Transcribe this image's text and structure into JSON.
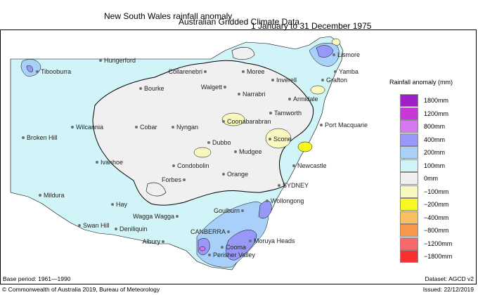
{
  "title": {
    "line1_left": "New South Wales rainfall anomaly",
    "line1_right": "1 January to 31 December 1975",
    "line2": "Australian Gridded Climate Data"
  },
  "footer": {
    "base_period": "Base period: 1961—1990",
    "dataset": "Dataset: AGCD v2",
    "copyright": "© Commonwealth of Australia 2019, Bureau of Meteorology",
    "issued": "Issued: 22/12/2019"
  },
  "legend": {
    "title": "Rainfall anomaly (mm)",
    "items": [
      {
        "label": "1800mm",
        "color": "#a020c8"
      },
      {
        "label": "1200mm",
        "color": "#c838d8"
      },
      {
        "label": "800mm",
        "color": "#d878f0"
      },
      {
        "label": "400mm",
        "color": "#9898f8"
      },
      {
        "label": "200mm",
        "color": "#a8d0f8"
      },
      {
        "label": "100mm",
        "color": "#d0f4f8"
      },
      {
        "label": "0mm",
        "color": "#f0f0f0"
      },
      {
        "label": "−100mm",
        "color": "#f8f8c0"
      },
      {
        "label": "−200mm",
        "color": "#f8f820"
      },
      {
        "label": "−400mm",
        "color": "#f8c060"
      },
      {
        "label": "−800mm",
        "color": "#f89848"
      },
      {
        "label": "−1200mm",
        "color": "#f86868"
      },
      {
        "label": "−1800mm",
        "color": "#f83030"
      }
    ]
  },
  "towns": [
    {
      "name": "Hungerford"
    },
    {
      "name": "Tibooburra"
    },
    {
      "name": "Collarenebri"
    },
    {
      "name": "Moree"
    },
    {
      "name": "Lismore"
    },
    {
      "name": "Yamba"
    },
    {
      "name": "Grafton"
    },
    {
      "name": "Inverell"
    },
    {
      "name": "Bourke"
    },
    {
      "name": "Walgett"
    },
    {
      "name": "Narrabri"
    },
    {
      "name": "Armidale"
    },
    {
      "name": "Tamworth"
    },
    {
      "name": "Coonabarabran"
    },
    {
      "name": "Port Macquarie"
    },
    {
      "name": "Wilcannia"
    },
    {
      "name": "Cobar"
    },
    {
      "name": "Nyngan"
    },
    {
      "name": "Broken Hill"
    },
    {
      "name": "Dubbo"
    },
    {
      "name": "Scone"
    },
    {
      "name": "Mudgee"
    },
    {
      "name": "Ivanhoe"
    },
    {
      "name": "Condobolin"
    },
    {
      "name": "Newcastle"
    },
    {
      "name": "Orange"
    },
    {
      "name": "Forbes"
    },
    {
      "name": "SYDNEY"
    },
    {
      "name": "Mildura"
    },
    {
      "name": "Hay"
    },
    {
      "name": "Wagga Wagga"
    },
    {
      "name": "Goulburn"
    },
    {
      "name": "Wollongong"
    },
    {
      "name": "Swan Hill"
    },
    {
      "name": "Deniliquin"
    },
    {
      "name": "CANBERRA"
    },
    {
      "name": "Albury"
    },
    {
      "name": "Cooma"
    },
    {
      "name": "Moruya Heads"
    },
    {
      "name": "Perisher Valley"
    }
  ]
}
